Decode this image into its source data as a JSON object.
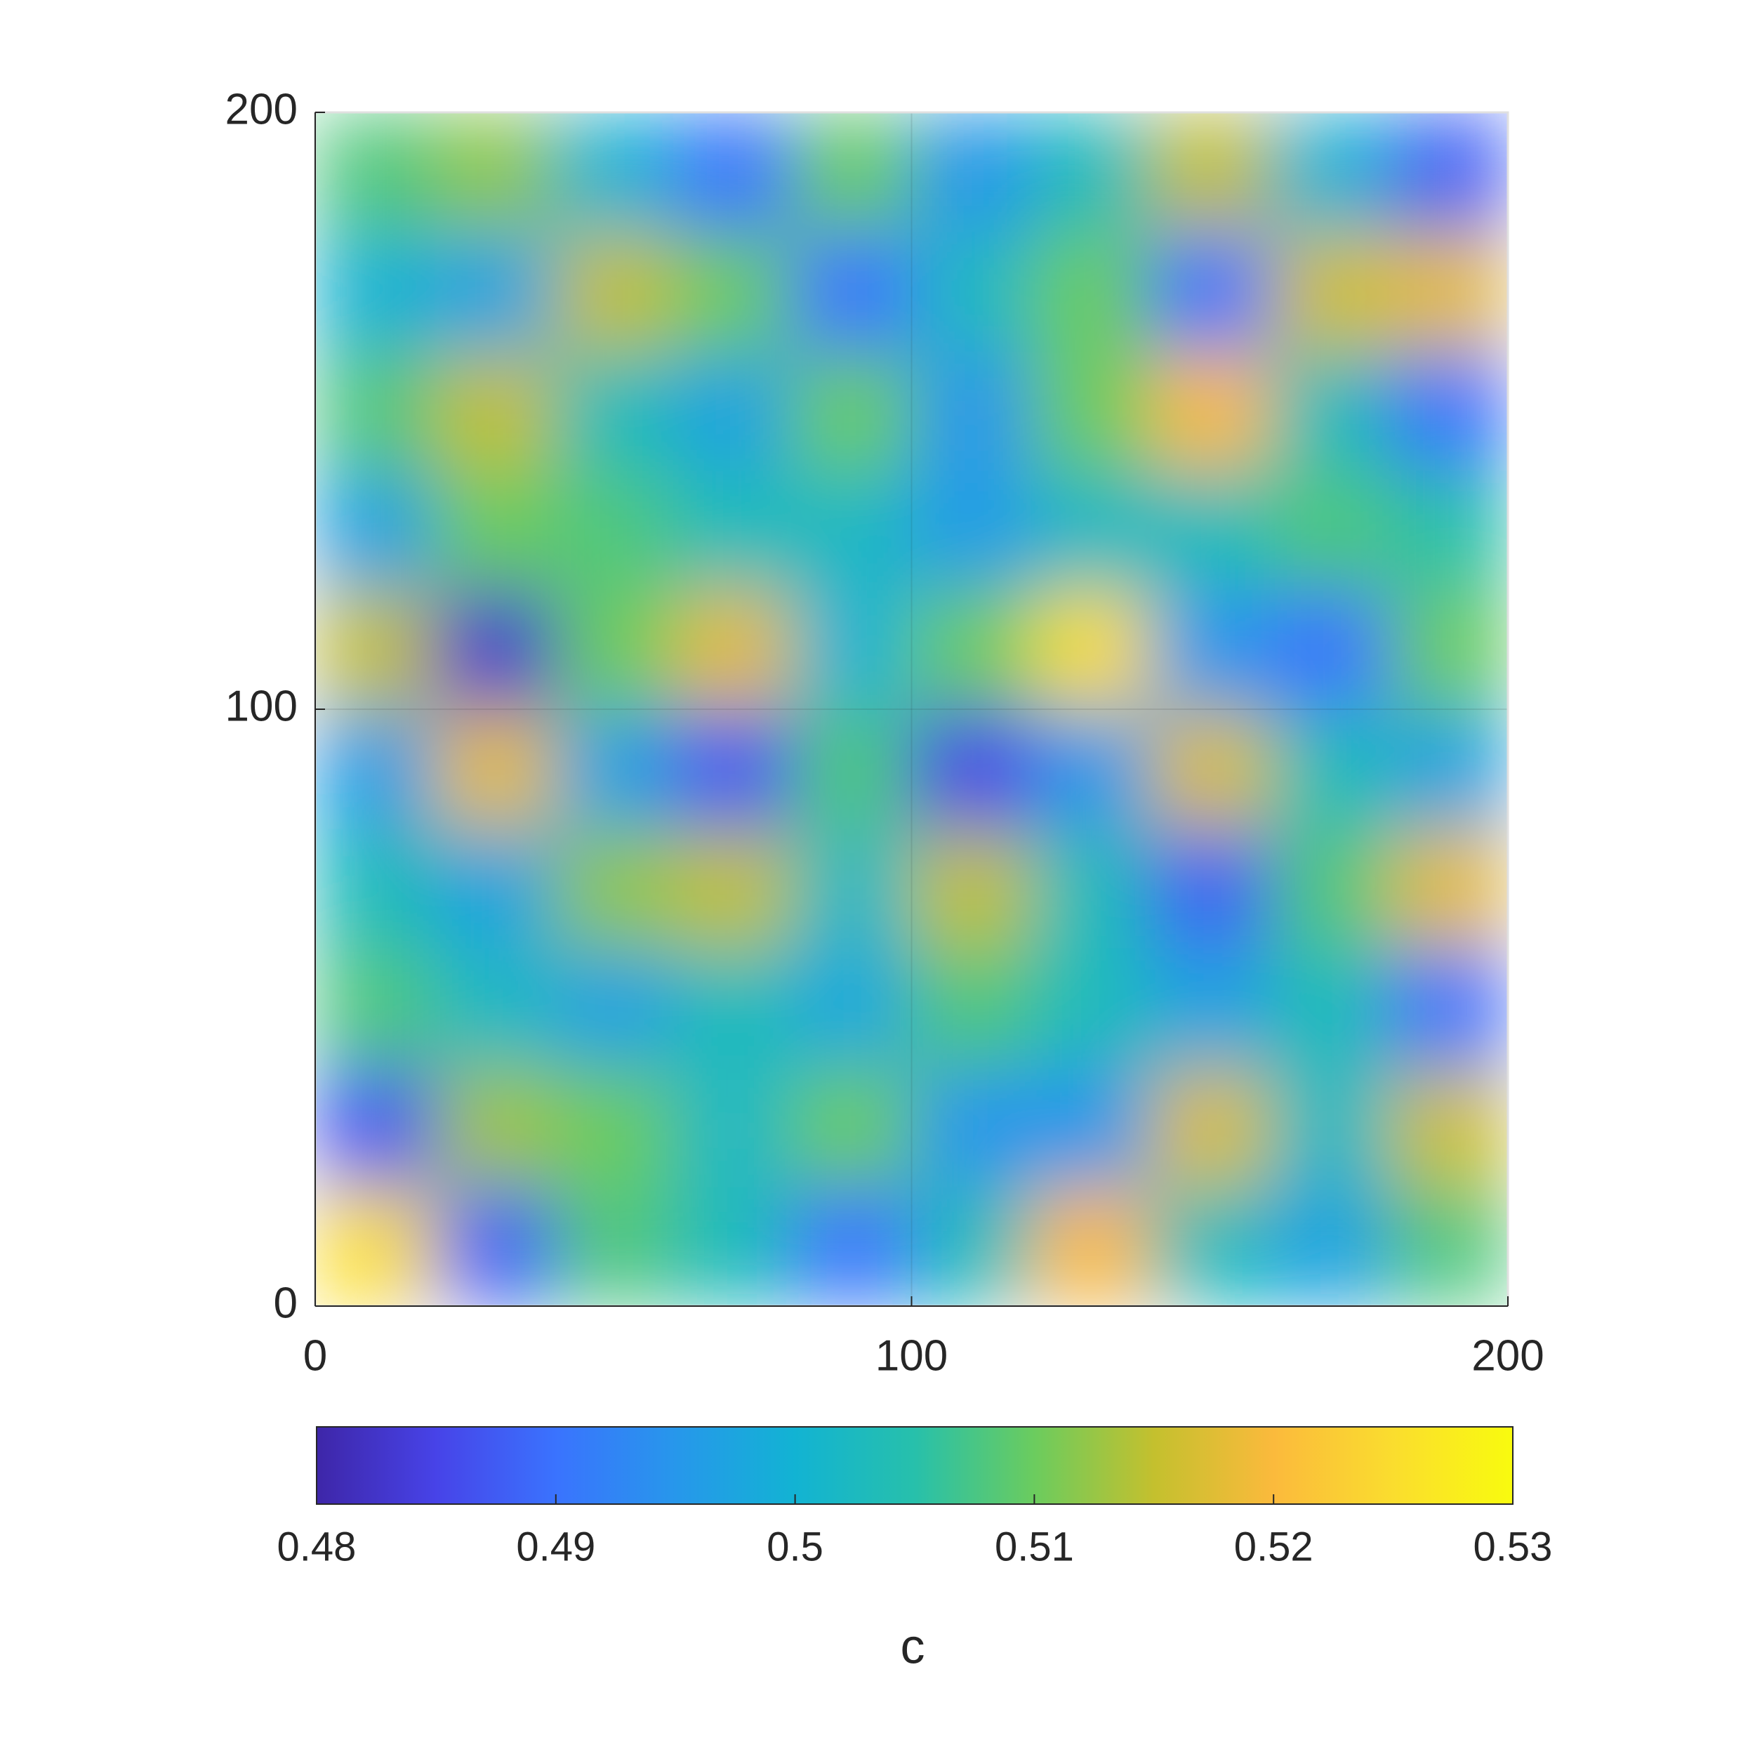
{
  "chart_data": {
    "type": "heatmap",
    "x": [
      10,
      30,
      50,
      70,
      90,
      110,
      130,
      150,
      170,
      190
    ],
    "y": [
      10,
      30,
      50,
      70,
      90,
      110,
      130,
      150,
      170,
      190
    ],
    "z": [
      [
        0.525,
        0.488,
        0.508,
        0.503,
        0.49,
        0.503,
        0.52,
        0.503,
        0.497,
        0.508
      ],
      [
        0.487,
        0.513,
        0.51,
        0.502,
        0.51,
        0.495,
        0.495,
        0.517,
        0.502,
        0.516
      ],
      [
        0.508,
        0.502,
        0.497,
        0.503,
        0.498,
        0.508,
        0.503,
        0.497,
        0.503,
        0.49
      ],
      [
        0.503,
        0.497,
        0.512,
        0.515,
        0.502,
        0.515,
        0.503,
        0.488,
        0.508,
        0.518
      ],
      [
        0.496,
        0.518,
        0.497,
        0.487,
        0.508,
        0.485,
        0.495,
        0.517,
        0.503,
        0.497
      ],
      [
        0.515,
        0.483,
        0.51,
        0.518,
        0.5,
        0.51,
        0.525,
        0.495,
        0.49,
        0.51
      ],
      [
        0.497,
        0.51,
        0.508,
        0.503,
        0.502,
        0.496,
        0.502,
        0.503,
        0.508,
        0.505
      ],
      [
        0.508,
        0.515,
        0.503,
        0.497,
        0.51,
        0.495,
        0.51,
        0.52,
        0.503,
        0.49
      ],
      [
        0.5,
        0.497,
        0.515,
        0.51,
        0.49,
        0.502,
        0.51,
        0.49,
        0.516,
        0.518
      ],
      [
        0.508,
        0.512,
        0.5,
        0.49,
        0.51,
        0.495,
        0.503,
        0.515,
        0.5,
        0.488
      ]
    ],
    "xlim": [
      0,
      200
    ],
    "ylim": [
      0,
      200
    ],
    "xticks": [
      0,
      100,
      200
    ],
    "yticks": [
      0,
      100,
      200
    ],
    "grid": true,
    "colorbar": {
      "clim": [
        0.48,
        0.53
      ],
      "ticks": [
        0.48,
        0.49,
        0.5,
        0.51,
        0.52,
        0.53
      ],
      "label": "c",
      "location": "south"
    },
    "colormap": [
      "#3e26a8",
      "#4743e8",
      "#3a73fe",
      "#2797eb",
      "#12b3d3",
      "#27c0ab",
      "#6bcc5e",
      "#c4c02e",
      "#fbba3c",
      "#fadd2e",
      "#f9fb0e"
    ]
  }
}
